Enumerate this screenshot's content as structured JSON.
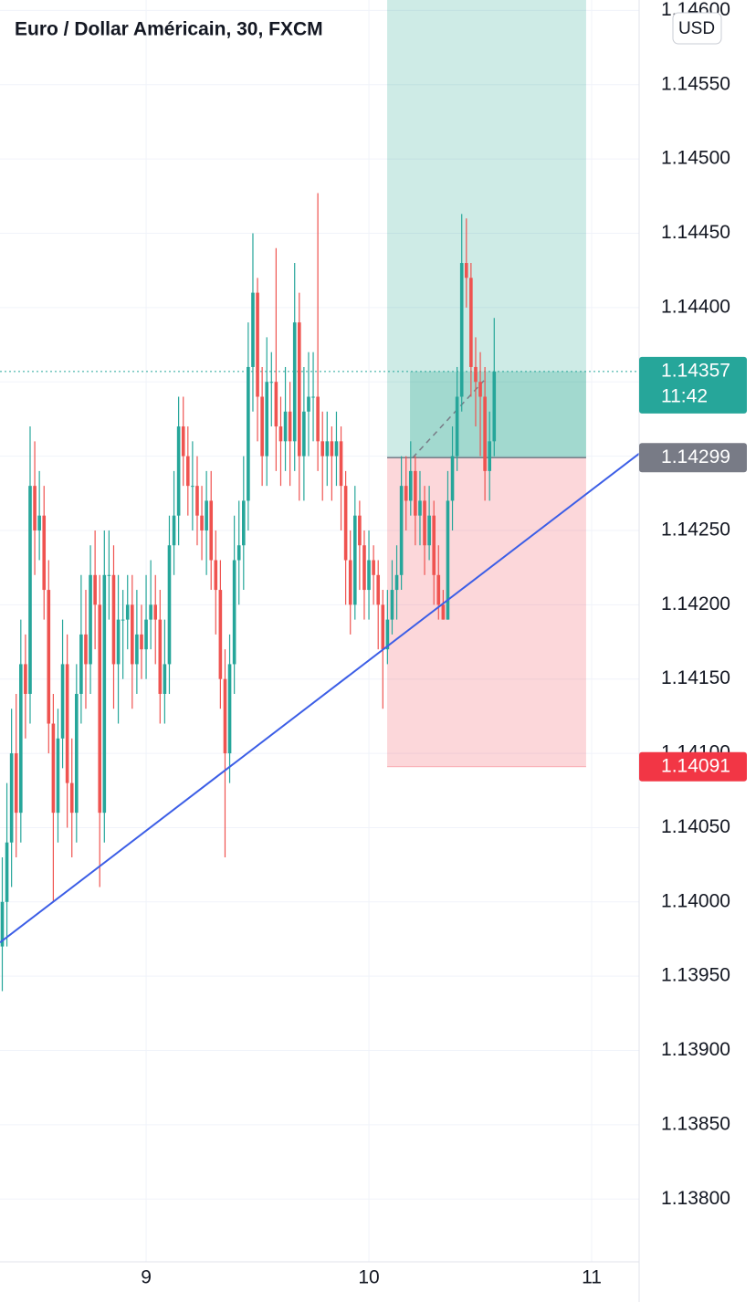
{
  "chart_data": {
    "type": "candlestick",
    "title": "Euro / Dollar Américain, 30, FXCM",
    "currency": "USD",
    "x": [
      8.3542,
      8.375,
      8.3958,
      8.4167,
      8.4375,
      8.4583,
      8.4792,
      8.5,
      8.5208,
      8.5417,
      8.5625,
      8.5833,
      8.6042,
      8.625,
      8.6458,
      8.6667,
      8.6875,
      8.7083,
      8.7292,
      8.75,
      8.7708,
      8.7917,
      8.8125,
      8.8333,
      8.8542,
      8.875,
      8.8958,
      8.9167,
      8.9375,
      8.9583,
      8.9792,
      9.0,
      9.0208,
      9.0417,
      9.0625,
      9.0833,
      9.1042,
      9.125,
      9.1458,
      9.1667,
      9.1875,
      9.2083,
      9.2292,
      9.25,
      9.2708,
      9.2917,
      9.3125,
      9.3333,
      9.3542,
      9.375,
      9.3958,
      9.4167,
      9.4375,
      9.4583,
      9.4792,
      9.5,
      9.5208,
      9.5417,
      9.5625,
      9.5833,
      9.6042,
      9.625,
      9.6458,
      9.6667,
      9.6875,
      9.7083,
      9.7292,
      9.75,
      9.7708,
      9.7917,
      9.8125,
      9.8333,
      9.8542,
      9.875,
      9.8958,
      9.9167,
      9.9375,
      9.9583,
      9.9792,
      10.0,
      10.0208,
      10.0417,
      10.0625,
      10.0833,
      10.1042,
      10.125,
      10.1458,
      10.1667,
      10.1875,
      10.2083,
      10.2292,
      10.25,
      10.2708,
      10.2917,
      10.3125,
      10.3333,
      10.3542,
      10.375,
      10.3958,
      10.4167,
      10.4375,
      10.4583,
      10.4792,
      10.5,
      10.5208,
      10.5417,
      10.5625
    ],
    "open": [
      1.1397,
      1.14,
      1.1404,
      1.141,
      1.1406,
      1.1416,
      1.1414,
      1.1428,
      1.1425,
      1.1426,
      1.1421,
      1.1412,
      1.1406,
      1.1411,
      1.1416,
      1.1408,
      1.1406,
      1.1414,
      1.1418,
      1.1416,
      1.1422,
      1.142,
      1.1406,
      1.1422,
      1.1422,
      1.1416,
      1.1419,
      1.1419,
      1.142,
      1.1416,
      1.1418,
      1.1417,
      1.1419,
      1.142,
      1.1419,
      1.1414,
      1.1416,
      1.1424,
      1.1426,
      1.1432,
      1.143,
      1.1428,
      1.1428,
      1.1426,
      1.1425,
      1.1427,
      1.1423,
      1.1421,
      1.1415,
      1.141,
      1.1416,
      1.1423,
      1.1424,
      1.1427,
      1.1436,
      1.1441,
      1.1434,
      1.143,
      1.1435,
      1.1435,
      1.1432,
      1.1431,
      1.1433,
      1.1431,
      1.1439,
      1.143,
      1.1433,
      1.1434,
      1.1434,
      1.1431,
      1.143,
      1.1431,
      1.143,
      1.1431,
      1.1428,
      1.1423,
      1.142,
      1.1426,
      1.1424,
      1.1421,
      1.1423,
      1.1422,
      1.142,
      1.1417,
      1.1419,
      1.1421,
      1.1422,
      1.1428,
      1.1427,
      1.1429,
      1.1426,
      1.1427,
      1.1424,
      1.1426,
      1.1422,
      1.142,
      1.1419,
      1.1427,
      1.143,
      1.1434,
      1.1443,
      1.1442,
      1.1436,
      1.1435,
      1.1434,
      1.1429,
      1.1431
    ],
    "high": [
      1.1403,
      1.1408,
      1.1413,
      1.1414,
      1.1419,
      1.1418,
      1.1432,
      1.1431,
      1.1429,
      1.1428,
      1.1423,
      1.1414,
      1.1413,
      1.1419,
      1.1418,
      1.1411,
      1.1416,
      1.1422,
      1.1421,
      1.1424,
      1.1425,
      1.1422,
      1.1425,
      1.1425,
      1.1424,
      1.1422,
      1.1421,
      1.1422,
      1.1422,
      1.1421,
      1.142,
      1.1422,
      1.1423,
      1.1422,
      1.1421,
      1.1419,
      1.1426,
      1.1429,
      1.1434,
      1.1434,
      1.1432,
      1.1431,
      1.143,
      1.1428,
      1.1429,
      1.1429,
      1.1425,
      1.1423,
      1.1417,
      1.1418,
      1.1426,
      1.1427,
      1.143,
      1.1439,
      1.1445,
      1.1442,
      1.1436,
      1.1438,
      1.1437,
      1.1444,
      1.1434,
      1.1436,
      1.1435,
      1.1443,
      1.1441,
      1.1436,
      1.1437,
      1.1437,
      1.14477,
      1.1433,
      1.1433,
      1.1432,
      1.1433,
      1.1432,
      1.1429,
      1.1425,
      1.1428,
      1.1427,
      1.1425,
      1.1425,
      1.1424,
      1.1423,
      1.1421,
      1.1421,
      1.1423,
      1.1424,
      1.143,
      1.143,
      1.1431,
      1.143,
      1.1429,
      1.1428,
      1.1428,
      1.1427,
      1.1424,
      1.1421,
      1.1429,
      1.1432,
      1.1436,
      1.14463,
      1.1446,
      1.1443,
      1.1438,
      1.1437,
      1.1436,
      1.1433,
      1.14393
    ],
    "low": [
      1.1394,
      1.1397,
      1.1401,
      1.1403,
      1.1404,
      1.1411,
      1.1412,
      1.1422,
      1.1423,
      1.1419,
      1.141,
      1.14,
      1.1404,
      1.1409,
      1.1405,
      1.1403,
      1.1404,
      1.1412,
      1.1413,
      1.1414,
      1.1417,
      1.1401,
      1.1404,
      1.1419,
      1.1413,
      1.1412,
      1.1415,
      1.1417,
      1.1413,
      1.1414,
      1.1415,
      1.1415,
      1.1417,
      1.1416,
      1.1412,
      1.1412,
      1.1414,
      1.1422,
      1.1424,
      1.1428,
      1.1426,
      1.1425,
      1.1424,
      1.1423,
      1.1422,
      1.1421,
      1.1418,
      1.1413,
      1.1403,
      1.1408,
      1.1414,
      1.142,
      1.1421,
      1.1425,
      1.1433,
      1.1431,
      1.1428,
      1.1428,
      1.1432,
      1.1429,
      1.1428,
      1.1429,
      1.1428,
      1.1429,
      1.1427,
      1.1427,
      1.143,
      1.1431,
      1.1429,
      1.1427,
      1.1428,
      1.1427,
      1.1428,
      1.1425,
      1.142,
      1.1418,
      1.1419,
      1.1421,
      1.1419,
      1.1419,
      1.142,
      1.1417,
      1.1413,
      1.1416,
      1.1418,
      1.1419,
      1.1421,
      1.1425,
      1.1426,
      1.1424,
      1.1424,
      1.1422,
      1.1423,
      1.142,
      1.1419,
      1.1419,
      1.1419,
      1.1425,
      1.1429,
      1.1433,
      1.144,
      1.1434,
      1.1432,
      1.143,
      1.1427,
      1.1427,
      1.143
    ],
    "close": [
      1.14,
      1.1404,
      1.141,
      1.1406,
      1.1416,
      1.1414,
      1.1428,
      1.1425,
      1.1426,
      1.1421,
      1.1412,
      1.1406,
      1.1411,
      1.1416,
      1.1408,
      1.1406,
      1.1414,
      1.1418,
      1.1416,
      1.1422,
      1.142,
      1.1406,
      1.1422,
      1.1422,
      1.1416,
      1.1419,
      1.1419,
      1.142,
      1.1416,
      1.1418,
      1.1417,
      1.1419,
      1.142,
      1.1419,
      1.1414,
      1.1416,
      1.1424,
      1.1426,
      1.1432,
      1.143,
      1.1428,
      1.1428,
      1.1426,
      1.1425,
      1.1427,
      1.1423,
      1.1421,
      1.1415,
      1.141,
      1.1416,
      1.1423,
      1.1424,
      1.1427,
      1.1436,
      1.1441,
      1.1434,
      1.143,
      1.1435,
      1.1435,
      1.1432,
      1.1431,
      1.1433,
      1.1431,
      1.1439,
      1.143,
      1.1433,
      1.1434,
      1.1434,
      1.1431,
      1.143,
      1.1431,
      1.143,
      1.1431,
      1.1428,
      1.1423,
      1.142,
      1.1426,
      1.1424,
      1.1421,
      1.1423,
      1.1422,
      1.142,
      1.1417,
      1.1419,
      1.1421,
      1.1422,
      1.1428,
      1.1427,
      1.1429,
      1.1426,
      1.1427,
      1.1424,
      1.1426,
      1.1422,
      1.142,
      1.1419,
      1.1427,
      1.143,
      1.1434,
      1.1443,
      1.1442,
      1.1436,
      1.1435,
      1.1434,
      1.1429,
      1.1431,
      1.14357
    ],
    "up_color": "#26a69a",
    "down_color": "#ef5350",
    "xlim": [
      8.344,
      11.213
    ],
    "xticks": [
      9,
      10,
      11
    ],
    "ylim": [
      1.13759,
      1.14607
    ],
    "yticks": [
      {
        "value": 1.138,
        "label": "1.13800"
      },
      {
        "value": 1.1385,
        "label": "1.13850"
      },
      {
        "value": 1.139,
        "label": "1.13900"
      },
      {
        "value": 1.1395,
        "label": "1.13950"
      },
      {
        "value": 1.14,
        "label": "1.14000"
      },
      {
        "value": 1.1405,
        "label": "1.14050"
      },
      {
        "value": 1.141,
        "label": "1.14100"
      },
      {
        "value": 1.1415,
        "label": "1.14150"
      },
      {
        "value": 1.142,
        "label": "1.14200"
      },
      {
        "value": 1.1425,
        "label": "1.14250"
      },
      {
        "value": 1.143,
        "label": "1.14300"
      },
      {
        "value": 1.1435,
        "label": "1.14350"
      },
      {
        "value": 1.144,
        "label": "1.14400"
      },
      {
        "value": 1.1445,
        "label": "1.14450"
      },
      {
        "value": 1.145,
        "label": "1.14500"
      },
      {
        "value": 1.1455,
        "label": "1.14550"
      },
      {
        "value": 1.146,
        "label": "1.14600"
      }
    ],
    "grid": true,
    "last_price": {
      "value": 1.14357,
      "countdown": "11:42",
      "color": "#26a69a"
    },
    "position": {
      "x": [
        10.082,
        10.975
      ],
      "target": 1.1461,
      "entry": 1.14299,
      "stop": 1.14091,
      "entry_color": "#787b86",
      "stop_color": "#f23645"
    },
    "trendline": {
      "x": [
        8.344,
        11.213
      ],
      "y": [
        1.139727,
        1.143017
      ],
      "color": "#3c5ee6"
    }
  }
}
